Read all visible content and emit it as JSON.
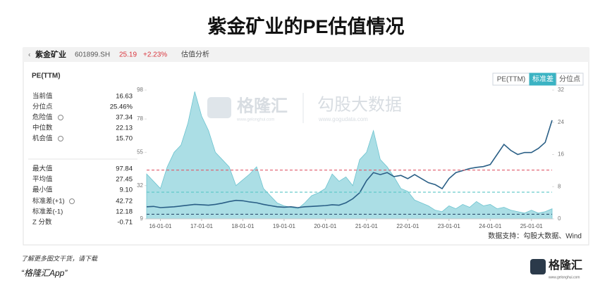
{
  "title": "紫金矿业的PE估值情况",
  "header": {
    "name": "紫金矿业",
    "code": "601899.SH",
    "price": "25.19",
    "change": "+2.23%",
    "section": "估值分析"
  },
  "metric": "PE(TTM)",
  "tabs": [
    "PE(TTM)",
    "标准差",
    "分位点"
  ],
  "stats": {
    "rows": [
      [
        "当前值",
        "16.63"
      ],
      [
        "分位点",
        "25.46%"
      ],
      [
        "危险值",
        "37.34"
      ],
      [
        "中位数",
        "22.13"
      ],
      [
        "机会值",
        "15.70"
      ],
      [
        "最大值",
        "97.84"
      ],
      [
        "平均值",
        "27.45"
      ],
      [
        "最小值",
        "9.10"
      ],
      [
        "标准差(+1)",
        "42.72"
      ],
      [
        "标准差(-1)",
        "12.18"
      ],
      [
        "Z 分数",
        "-0.71"
      ]
    ]
  },
  "watermark": {
    "brand": "格隆汇",
    "brand_url": "www.gelonghui.com",
    "data": "勾股大数据",
    "data_url": "www.gogudata.com"
  },
  "chart_data": {
    "type": "area-line",
    "x": [
      "15-09",
      "15-11",
      "16-01",
      "16-03",
      "16-05",
      "16-07",
      "16-09",
      "16-11",
      "17-01",
      "17-03",
      "17-05",
      "17-07",
      "17-09",
      "17-11",
      "18-01",
      "18-03",
      "18-05",
      "18-07",
      "18-09",
      "18-11",
      "19-01",
      "19-03",
      "19-05",
      "19-07",
      "19-09",
      "19-11",
      "20-01",
      "20-03",
      "20-05",
      "20-07",
      "20-09",
      "20-11",
      "21-01",
      "21-03",
      "21-05",
      "21-07",
      "21-09",
      "21-11",
      "22-01",
      "22-03",
      "22-05",
      "22-07",
      "22-09",
      "22-11",
      "23-01",
      "23-03",
      "23-05",
      "23-07",
      "23-09",
      "23-11",
      "24-01",
      "24-03",
      "24-05",
      "24-07",
      "24-09",
      "24-11",
      "25-01",
      "25-03",
      "25-05",
      "25-07"
    ],
    "xticks": [
      "16-01",
      "17-01",
      "18-01",
      "19-01",
      "20-01",
      "21-01",
      "22-01",
      "23-01",
      "24-01",
      "25-01"
    ],
    "xtick_labels": [
      "16-01-01",
      "17-01-01",
      "18-01-01",
      "19-01-01",
      "20-01-01",
      "21-01-01",
      "22-01-01",
      "23-01-01",
      "24-01-01",
      "25-01-01"
    ],
    "series": [
      {
        "color": "#8fd3dc",
        "axis": "y",
        "values": [
          40,
          35,
          30,
          45,
          55,
          60,
          75,
          97,
          80,
          70,
          55,
          50,
          45,
          32,
          36,
          40,
          45,
          30,
          25,
          20,
          18,
          17,
          16,
          20,
          25,
          27,
          30,
          40,
          35,
          38,
          32,
          50,
          55,
          70,
          50,
          45,
          38,
          30,
          28,
          22,
          20,
          18,
          15,
          14,
          18,
          16,
          19,
          17,
          21,
          18,
          19,
          16,
          17,
          15,
          14,
          13,
          15,
          13,
          14,
          16
        ]
      },
      {
        "color": "#2a5f86",
        "axis": "y2",
        "values": [
          3.0,
          3.1,
          2.8,
          2.9,
          3.0,
          3.2,
          3.4,
          3.6,
          3.5,
          3.4,
          3.6,
          3.9,
          4.3,
          4.6,
          4.5,
          4.2,
          4.0,
          3.6,
          3.3,
          3.0,
          2.9,
          3.0,
          2.8,
          3.0,
          3.1,
          3.2,
          3.3,
          3.5,
          3.4,
          4.0,
          5.0,
          6.5,
          9.5,
          11.5,
          11,
          11.5,
          10.5,
          10.8,
          10,
          11,
          10,
          9,
          8.5,
          7.5,
          10,
          11.5,
          12,
          12.5,
          12.8,
          13,
          13.5,
          16,
          18.5,
          17,
          16,
          16.5,
          16.5,
          17.5,
          19,
          24.5
        ]
      }
    ],
    "ylim": [
      9,
      98
    ],
    "yticks": [
      98,
      78,
      55,
      32,
      9
    ],
    "y2lim": [
      0,
      32
    ],
    "y2ticks": [
      32,
      24,
      16,
      8,
      0
    ]
  },
  "source": "数据支持：勾股大数据、Wind",
  "footer": {
    "line1": "了解更多图文干货，请下载",
    "line2": "“格隆汇App”",
    "logo": "格隆汇",
    "logo_url": "www.gelonghui.com"
  }
}
